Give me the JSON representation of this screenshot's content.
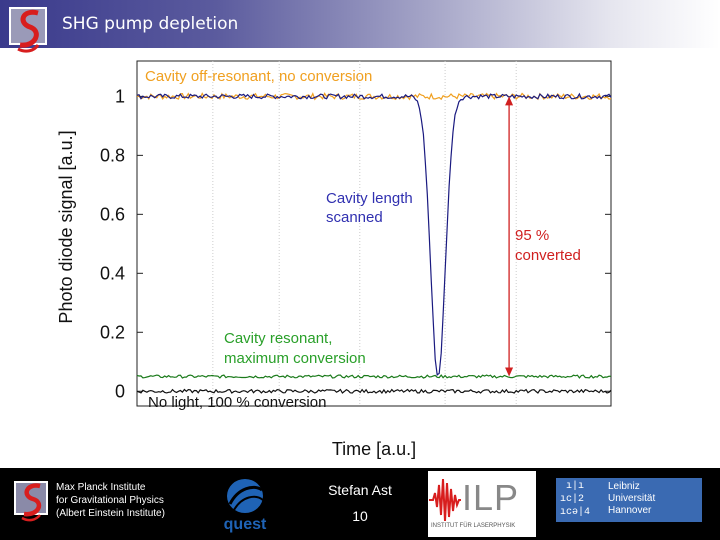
{
  "header": {
    "title": "SHG pump depletion"
  },
  "chart_data": {
    "type": "line",
    "title": "",
    "xlabel": "Time [a.u.]",
    "ylabel": "Photo diode signal [a.u.]",
    "ylim": [
      -0.05,
      1.12
    ],
    "xlim": [
      0,
      1
    ],
    "y_ticks": [
      0,
      0.2,
      0.4,
      0.6,
      0.8,
      1
    ],
    "y_tick_labels": [
      "0",
      "0.2",
      "0.4",
      "0.6",
      "0.8",
      "1"
    ],
    "grid": true,
    "series": [
      {
        "name": "Cavity off-resonant, no conversion",
        "color": "#f0a020",
        "level": 1.0,
        "noise": 0.01
      },
      {
        "name": "Cavity length scanned",
        "color": "#1a1a80",
        "level": 1.0,
        "noise": 0.008,
        "dip_center": 0.635,
        "dip_min": 0.05,
        "dip_width": 0.022
      },
      {
        "name": "Cavity resonant, maximum conversion",
        "color": "#1a7a1a",
        "level": 0.05,
        "noise": 0.005
      },
      {
        "name": "No light, 100 % conversion",
        "color": "#111111",
        "level": 0.0,
        "noise": 0.006
      }
    ],
    "annotations": {
      "off_resonant": "Cavity off-resonant, no conversion",
      "scanned_line1": "Cavity length",
      "scanned_line2": "scanned",
      "converted_line1": "95 %",
      "converted_line2": "converted",
      "resonant_line1": "Cavity resonant,",
      "resonant_line2": "maximum conversion",
      "no_light": "No light, 100 % conversion"
    },
    "arrow": {
      "x": 0.785,
      "from": 0.05,
      "to": 1.0,
      "color": "#d02020"
    },
    "colors": {
      "orange": "#f0a020",
      "blue": "#3030b0",
      "green": "#2aa02a",
      "red": "#d02020"
    }
  },
  "footer": {
    "institute_line1": "Max Planck Institute",
    "institute_line2": "for Gravitational Physics",
    "institute_line3": "(Albert Einstein Institute)",
    "quest_label": "quest",
    "speaker": "Stefan Ast",
    "page_number": "10",
    "ilp_label": "ILP",
    "ilp_subtitle": "INSTITUT FÜR LASERPHYSIK",
    "luh_line1": "Leibniz",
    "luh_line2": "Universität",
    "luh_line3": "Hannover"
  }
}
